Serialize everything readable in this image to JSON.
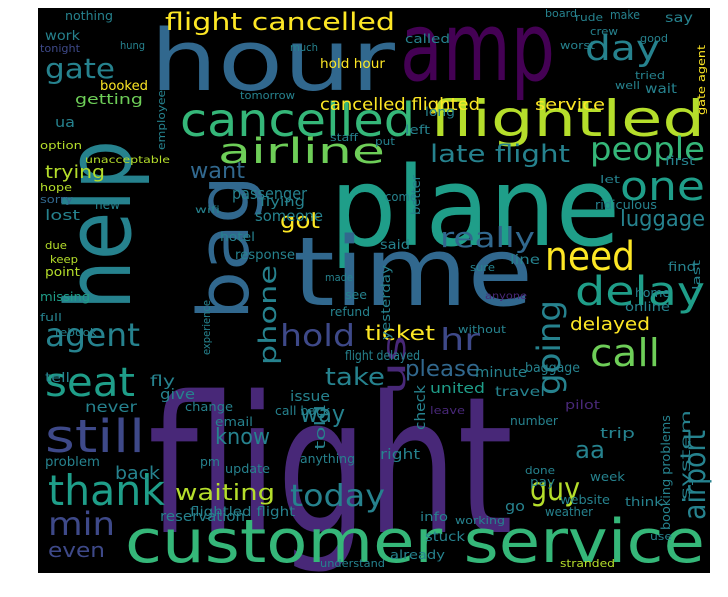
{
  "words": [
    "flight",
    "amp",
    "hour",
    "help",
    "plane",
    "time",
    "bag",
    "customer service",
    "cancelled",
    "flightled",
    "flight cancelled",
    "day",
    "gate",
    "airline",
    "people",
    "late flight",
    "one",
    "luggage",
    "need",
    "really",
    "delay",
    "agent",
    "seat",
    "still",
    "thank",
    "min",
    "even",
    "call",
    "delayed",
    "hold",
    "ticket",
    "hr",
    "going",
    "us",
    "phone",
    "take",
    "please",
    "today",
    "guy",
    "airport",
    "waiting",
    "know",
    "way",
    "want",
    "got",
    "trying",
    "cancelled flighted",
    "hold hour",
    "service",
    "nothing",
    "work",
    "tonight",
    "booked",
    "getting",
    "ua",
    "option",
    "unacceptable",
    "hope",
    "sorry",
    "lost",
    "due",
    "keep",
    "point",
    "missing",
    "never",
    "problem",
    "give",
    "fly",
    "back",
    "change",
    "call back",
    "update",
    "pm",
    "reservation",
    "email",
    "anything",
    "issue",
    "minute",
    "baggage",
    "travel",
    "united",
    "number",
    "right",
    "trip",
    "week",
    "aa",
    "website",
    "weather",
    "think",
    "pilot",
    "board",
    "crew",
    "rude",
    "say",
    "make",
    "worst",
    "good",
    "called",
    "much",
    "wait",
    "well",
    "tried",
    "tomorrow",
    "staff",
    "passenger",
    "someone",
    "hotel",
    "response",
    "said",
    "made",
    "see",
    "refund",
    "line",
    "home",
    "find",
    "online",
    "leave",
    "without",
    "anyone",
    "sure",
    "first",
    "let",
    "ridiculous",
    "new",
    "long",
    "left",
    "put",
    "come",
    "info",
    "working",
    "stuck",
    "already",
    "go",
    "pay",
    "done",
    "rebook",
    "flying",
    "wifi",
    "flightled flight",
    "flight delayed",
    "told",
    "check",
    "yesterday",
    "system",
    "booking problems",
    "gate agent",
    "employee",
    "better",
    "last",
    "tell",
    "full",
    "experience",
    "understand",
    "stranded",
    "use",
    "hung"
  ]
}
